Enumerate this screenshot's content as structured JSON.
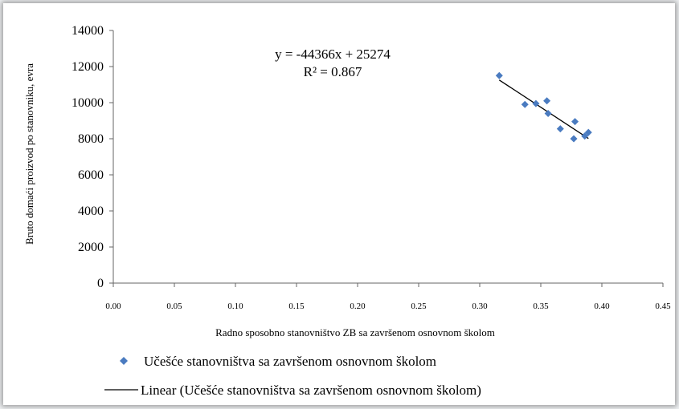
{
  "chart_data": {
    "type": "scatter",
    "xlabel": "Radno sposobno stanovništvo ZB sa završenom osnovnom školom",
    "ylabel": "Bruto domaći proizvod po stanovniku, evra",
    "xlim": [
      0,
      0.45
    ],
    "ylim": [
      0,
      14000
    ],
    "x_ticks": [
      "0.00",
      "0.05",
      "0.10",
      "0.15",
      "0.20",
      "0.25",
      "0.30",
      "0.35",
      "0.40",
      "0.45"
    ],
    "y_ticks": [
      "0",
      "2000",
      "4000",
      "6000",
      "8000",
      "10000",
      "12000",
      "14000"
    ],
    "grid": false,
    "series": [
      {
        "name": "Učešće stanovništva sa završenom osnovnom školom",
        "color": "#4a7bc0",
        "marker": "diamond",
        "points": [
          {
            "x": 0.316,
            "y": 11500
          },
          {
            "x": 0.337,
            "y": 9900
          },
          {
            "x": 0.346,
            "y": 9950
          },
          {
            "x": 0.355,
            "y": 10100
          },
          {
            "x": 0.356,
            "y": 9400
          },
          {
            "x": 0.366,
            "y": 8550
          },
          {
            "x": 0.377,
            "y": 8000
          },
          {
            "x": 0.378,
            "y": 8950
          },
          {
            "x": 0.386,
            "y": 8150
          },
          {
            "x": 0.389,
            "y": 8350
          }
        ]
      }
    ],
    "trendline": {
      "name": "Linear (Učešće stanovništva sa završenom osnovnom školom)",
      "slope": -44366,
      "intercept": 25274,
      "x_range": [
        0.316,
        0.389
      ],
      "color": "#000000"
    },
    "annotation": {
      "equation": "y = -44366x + 25274",
      "r2": "R² = 0.867"
    },
    "legend": {
      "position": "bottom"
    }
  }
}
